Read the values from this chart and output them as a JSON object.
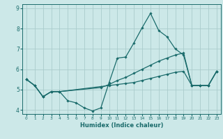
{
  "xlabel": "Humidex (Indice chaleur)",
  "background_color": "#cce8e8",
  "grid_color": "#aacccc",
  "line_color": "#1a6b6b",
  "xlim": [
    -0.5,
    23.5
  ],
  "ylim": [
    3.8,
    9.2
  ],
  "yticks": [
    4,
    5,
    6,
    7,
    8,
    9
  ],
  "xticks": [
    0,
    1,
    2,
    3,
    4,
    5,
    6,
    7,
    8,
    9,
    10,
    11,
    12,
    13,
    14,
    15,
    16,
    17,
    18,
    19,
    20,
    21,
    22,
    23
  ],
  "series": [
    {
      "x": [
        0,
        1,
        2,
        3,
        4,
        5,
        6,
        7,
        8,
        9,
        10,
        11,
        12,
        13,
        14,
        15,
        16,
        17,
        18,
        19,
        20,
        21,
        22,
        23
      ],
      "y": [
        5.5,
        5.2,
        4.65,
        4.9,
        4.9,
        4.45,
        4.35,
        4.1,
        3.95,
        4.1,
        5.35,
        6.55,
        6.6,
        7.3,
        8.05,
        8.75,
        7.9,
        7.6,
        7.0,
        6.7,
        5.2,
        5.2,
        5.2,
        5.9
      ]
    },
    {
      "x": [
        0,
        1,
        2,
        3,
        4,
        9,
        10,
        11,
        12,
        13,
        14,
        15,
        16,
        17,
        18,
        19,
        20,
        21,
        22,
        23
      ],
      "y": [
        5.5,
        5.2,
        4.65,
        4.9,
        4.9,
        5.15,
        5.2,
        5.25,
        5.3,
        5.35,
        5.45,
        5.55,
        5.65,
        5.75,
        5.85,
        5.9,
        5.2,
        5.2,
        5.2,
        5.9
      ]
    },
    {
      "x": [
        0,
        1,
        2,
        3,
        4,
        9,
        10,
        11,
        12,
        13,
        14,
        15,
        16,
        17,
        18,
        19,
        20,
        21,
        22,
        23
      ],
      "y": [
        5.5,
        5.2,
        4.65,
        4.9,
        4.9,
        5.1,
        5.25,
        5.45,
        5.6,
        5.8,
        6.0,
        6.2,
        6.4,
        6.55,
        6.7,
        6.8,
        5.2,
        5.2,
        5.2,
        5.9
      ]
    }
  ]
}
